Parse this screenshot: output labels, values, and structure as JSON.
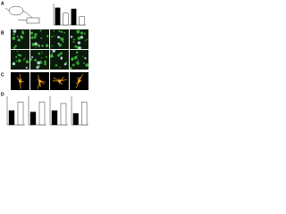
{
  "panels": [
    "A",
    "B",
    "C",
    "D"
  ],
  "plots": [
    {
      "values": [
        0.8,
        0.55,
        0.75,
        0.4
      ],
      "colors": [
        "#000",
        "#fff",
        "#000",
        "#fff"
      ],
      "ylim": [
        0,
        1
      ]
    },
    {
      "values": [
        0.5,
        0.8
      ],
      "colors": [
        "#000",
        "#fff"
      ],
      "ylim": [
        0,
        1
      ]
    },
    {
      "values": [
        0.45,
        0.8
      ],
      "colors": [
        "#000",
        "#fff"
      ],
      "ylim": [
        0,
        1
      ]
    },
    {
      "values": [
        0.5,
        0.75
      ],
      "colors": [
        "#000",
        "#fff"
      ],
      "ylim": [
        0,
        1
      ]
    },
    {
      "values": [
        0.4,
        0.8
      ],
      "colors": [
        "#000",
        "#fff"
      ],
      "ylim": [
        0,
        1
      ]
    }
  ]
}
